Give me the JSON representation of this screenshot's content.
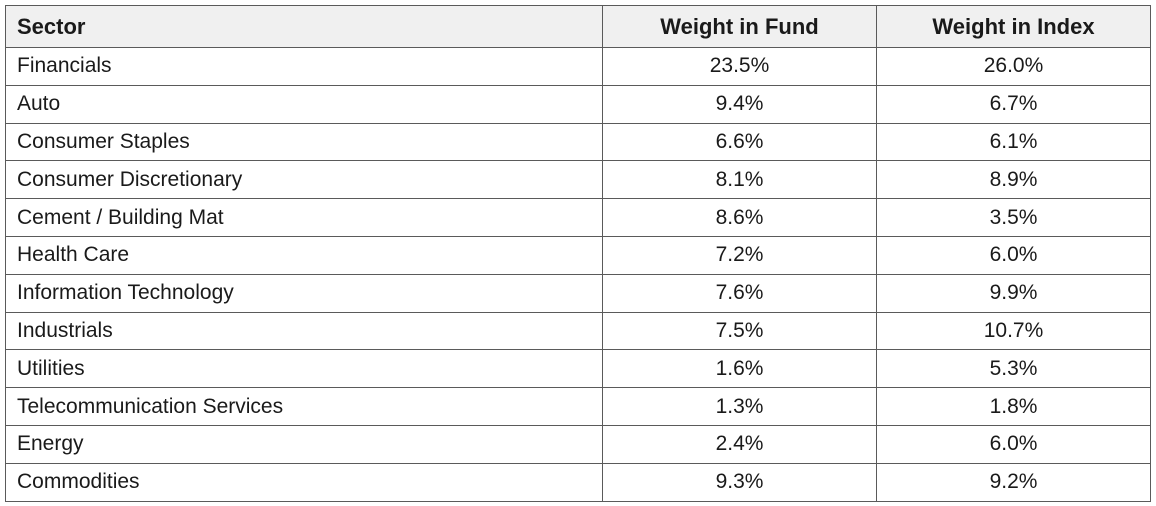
{
  "table": {
    "headers": [
      "Sector",
      "Weight in Fund",
      "Weight in Index"
    ],
    "rows": [
      [
        "Financials",
        "23.5%",
        "26.0%"
      ],
      [
        "Auto",
        "9.4%",
        "6.7%"
      ],
      [
        "Consumer Staples",
        "6.6%",
        "6.1%"
      ],
      [
        "Consumer Discretionary",
        "8.1%",
        "8.9%"
      ],
      [
        "Cement / Building Mat",
        "8.6%",
        "3.5%"
      ],
      [
        "Health Care",
        "7.2%",
        "6.0%"
      ],
      [
        "Information Technology",
        "7.6%",
        "9.9%"
      ],
      [
        "Industrials",
        "7.5%",
        "10.7%"
      ],
      [
        "Utilities",
        "1.6%",
        "5.3%"
      ],
      [
        "Telecommunication Services",
        "1.3%",
        "1.8%"
      ],
      [
        "Energy",
        "2.4%",
        "6.0%"
      ],
      [
        "Commodities",
        "9.3%",
        "9.2%"
      ]
    ]
  },
  "colors": {
    "header_background": "#f0f0f0",
    "border": "#5a5a5a",
    "text": "#1a1a1a"
  }
}
